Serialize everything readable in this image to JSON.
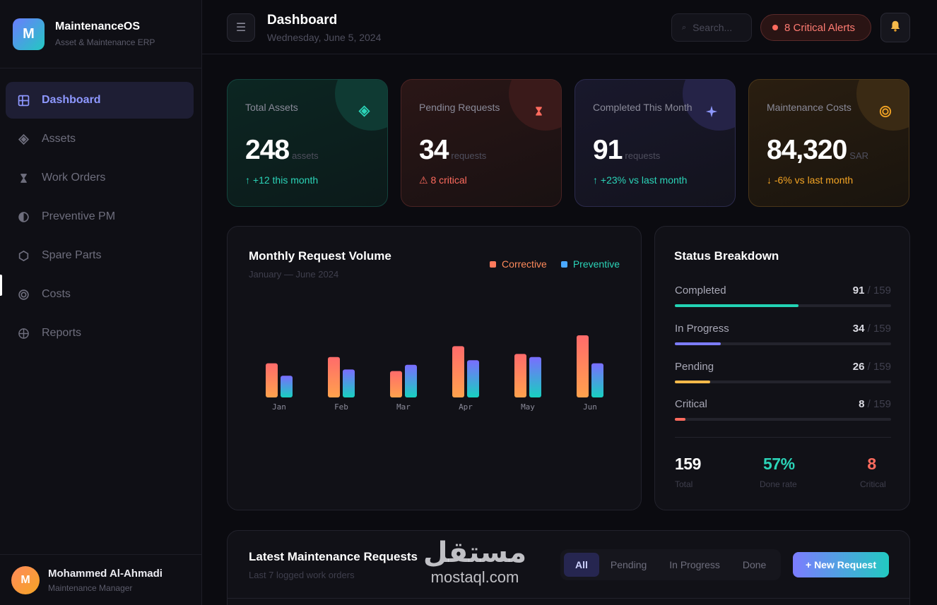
{
  "brand": {
    "logo_letter": "M",
    "name": "MaintenanceOS",
    "subtitle": "Asset & Maintenance ERP"
  },
  "nav": [
    {
      "label": "Dashboard",
      "icon": "grid-icon",
      "active": true
    },
    {
      "label": "Assets",
      "icon": "diamond-icon"
    },
    {
      "label": "Work Orders",
      "icon": "hourglass-icon"
    },
    {
      "label": "Preventive PM",
      "icon": "half-circle-icon"
    },
    {
      "label": "Spare Parts",
      "icon": "hexagon-icon"
    },
    {
      "label": "Costs",
      "icon": "coin-icon"
    },
    {
      "label": "Reports",
      "icon": "globe-icon"
    }
  ],
  "user": {
    "initial": "M",
    "name": "Mohammed Al-Ahmadi",
    "role": "Maintenance Manager"
  },
  "topbar": {
    "title": "Dashboard",
    "date": "Wednesday, June 5, 2024",
    "search_placeholder": "Search...",
    "alerts_label": "8 Critical Alerts"
  },
  "stats": [
    {
      "label": "Total Assets",
      "value": "248",
      "unit": "assets",
      "trend": "↑ +12 this month",
      "icon": "diamond-icon"
    },
    {
      "label": "Pending Requests",
      "value": "34",
      "unit": "requests",
      "trend": "⚠ 8 critical",
      "icon": "hourglass-icon"
    },
    {
      "label": "Completed This Month",
      "value": "91",
      "unit": "requests",
      "trend": "↑ +23% vs last month",
      "icon": "sparkle-icon"
    },
    {
      "label": "Maintenance Costs",
      "value": "84,320",
      "unit": "SAR",
      "trend": "↓ -6% vs last month",
      "icon": "coin-icon"
    }
  ],
  "chart_panel": {
    "title": "Monthly Request Volume",
    "subtitle": "January — June 2024"
  },
  "chart_data": {
    "type": "bar",
    "categories": [
      "Jan",
      "Feb",
      "Mar",
      "Apr",
      "May",
      "Jun"
    ],
    "series": [
      {
        "name": "Corrective",
        "values": [
          22,
          26,
          17,
          33,
          28,
          40
        ],
        "color": "#ff7a5c"
      },
      {
        "name": "Preventive",
        "values": [
          14,
          18,
          21,
          24,
          26,
          22
        ],
        "color": "#6f7cff"
      }
    ],
    "title": "Monthly Request Volume",
    "subtitle": "January — June 2024",
    "legend": "top-right",
    "grid": false
  },
  "status": {
    "title": "Status Breakdown",
    "total_label": "/ 159",
    "rows": [
      {
        "label": "Completed",
        "value": "91",
        "fraction": 0.572,
        "color": "#22d3b4"
      },
      {
        "label": "In Progress",
        "value": "34",
        "fraction": 0.214,
        "color": "#7c7cff"
      },
      {
        "label": "Pending",
        "value": "26",
        "fraction": 0.164,
        "color": "#f5b94a"
      },
      {
        "label": "Critical",
        "value": "8",
        "fraction": 0.05,
        "color": "#ff6b5e"
      }
    ],
    "summary": [
      {
        "value": "159",
        "label": "Total",
        "color": "#ffffff"
      },
      {
        "value": "57%",
        "label": "Done rate",
        "color": "#2bd4b8"
      },
      {
        "value": "8",
        "label": "Critical",
        "color": "#ff6b5e"
      }
    ]
  },
  "requests": {
    "title": "Latest Maintenance Requests",
    "subtitle": "Last 7 logged work orders",
    "filters": [
      "All",
      "Pending",
      "In Progress",
      "Done"
    ],
    "active_filter": "All",
    "new_button": "+ New Request"
  },
  "watermark": {
    "arabic": "مستقل",
    "latin": "mostaql.com"
  }
}
